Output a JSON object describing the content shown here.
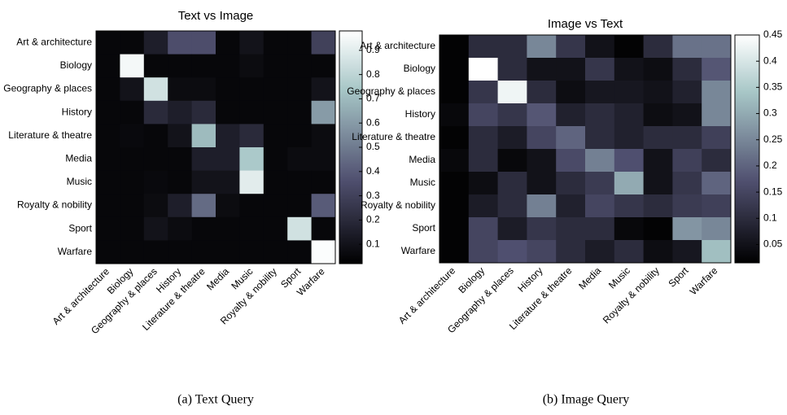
{
  "chart_data": [
    {
      "type": "heatmap",
      "title": "Text vs Image",
      "caption": "(a) Text Query",
      "colormap": "bone",
      "x_categories": [
        "Art & architecture",
        "Biology",
        "Geography & places",
        "History",
        "Literature & theatre",
        "Media",
        "Music",
        "Royalty & nobility",
        "Sport",
        "Warfare"
      ],
      "y_categories": [
        "Art & architecture",
        "Biology",
        "Geography & places",
        "History",
        "Literature & theatre",
        "Media",
        "Music",
        "Royalty & nobility",
        "Sport",
        "Warfare"
      ],
      "values": [
        [
          0.05,
          0.05,
          0.15,
          0.35,
          0.35,
          0.05,
          0.1,
          0.05,
          0.05,
          0.3
        ],
        [
          0.05,
          0.95,
          0.05,
          0.05,
          0.05,
          0.05,
          0.07,
          0.05,
          0.05,
          0.05
        ],
        [
          0.05,
          0.1,
          0.85,
          0.07,
          0.07,
          0.05,
          0.05,
          0.05,
          0.05,
          0.1
        ],
        [
          0.05,
          0.05,
          0.2,
          0.15,
          0.2,
          0.05,
          0.05,
          0.05,
          0.05,
          0.6
        ],
        [
          0.05,
          0.06,
          0.05,
          0.1,
          0.7,
          0.15,
          0.2,
          0.05,
          0.05,
          0.07
        ],
        [
          0.05,
          0.05,
          0.05,
          0.05,
          0.15,
          0.15,
          0.75,
          0.05,
          0.07,
          0.07
        ],
        [
          0.05,
          0.05,
          0.06,
          0.05,
          0.1,
          0.1,
          0.9,
          0.05,
          0.05,
          0.05
        ],
        [
          0.05,
          0.05,
          0.07,
          0.15,
          0.45,
          0.07,
          0.05,
          0.05,
          0.05,
          0.4
        ],
        [
          0.05,
          0.05,
          0.1,
          0.07,
          0.05,
          0.05,
          0.05,
          0.05,
          0.85,
          0.05
        ],
        [
          0.05,
          0.05,
          0.05,
          0.05,
          0.05,
          0.05,
          0.05,
          0.05,
          0.05,
          0.97
        ]
      ],
      "clim": [
        0.02,
        0.98
      ],
      "cticks": [
        0.1,
        0.2,
        0.3,
        0.4,
        0.5,
        0.6,
        0.7,
        0.8,
        0.9
      ]
    },
    {
      "type": "heatmap",
      "title": "Image vs Text",
      "caption": "(b) Image Query",
      "colormap": "bone",
      "x_categories": [
        "Art & architecture",
        "Biology",
        "Geography & places",
        "History",
        "Literature & theatre",
        "Media",
        "Music",
        "Royalty & nobility",
        "Sport",
        "Warfare"
      ],
      "y_categories": [
        "Art & architecture",
        "Biology",
        "Geography & places",
        "History",
        "Literature & theatre",
        "Media",
        "Music",
        "Royalty & nobility",
        "Sport",
        "Warfare"
      ],
      "values": [
        [
          0.02,
          0.1,
          0.1,
          0.25,
          0.12,
          0.05,
          0.02,
          0.1,
          0.22,
          0.22
        ],
        [
          0.02,
          0.45,
          0.1,
          0.05,
          0.05,
          0.12,
          0.05,
          0.04,
          0.1,
          0.18
        ],
        [
          0.02,
          0.12,
          0.43,
          0.1,
          0.04,
          0.06,
          0.06,
          0.05,
          0.08,
          0.25
        ],
        [
          0.03,
          0.15,
          0.12,
          0.18,
          0.08,
          0.1,
          0.08,
          0.04,
          0.05,
          0.25
        ],
        [
          0.02,
          0.1,
          0.07,
          0.15,
          0.2,
          0.1,
          0.08,
          0.1,
          0.1,
          0.14
        ],
        [
          0.03,
          0.1,
          0.03,
          0.05,
          0.16,
          0.24,
          0.17,
          0.05,
          0.14,
          0.1
        ],
        [
          0.02,
          0.04,
          0.1,
          0.05,
          0.1,
          0.13,
          0.3,
          0.05,
          0.12,
          0.2
        ],
        [
          0.02,
          0.07,
          0.1,
          0.24,
          0.08,
          0.15,
          0.12,
          0.1,
          0.13,
          0.14
        ],
        [
          0.02,
          0.15,
          0.07,
          0.12,
          0.1,
          0.1,
          0.03,
          0.02,
          0.27,
          0.25
        ],
        [
          0.02,
          0.15,
          0.17,
          0.15,
          0.1,
          0.07,
          0.1,
          0.04,
          0.06,
          0.33
        ]
      ],
      "clim": [
        0.015,
        0.45
      ],
      "cticks": [
        0.05,
        0.1,
        0.15,
        0.2,
        0.25,
        0.3,
        0.35,
        0.4,
        0.45
      ]
    }
  ]
}
